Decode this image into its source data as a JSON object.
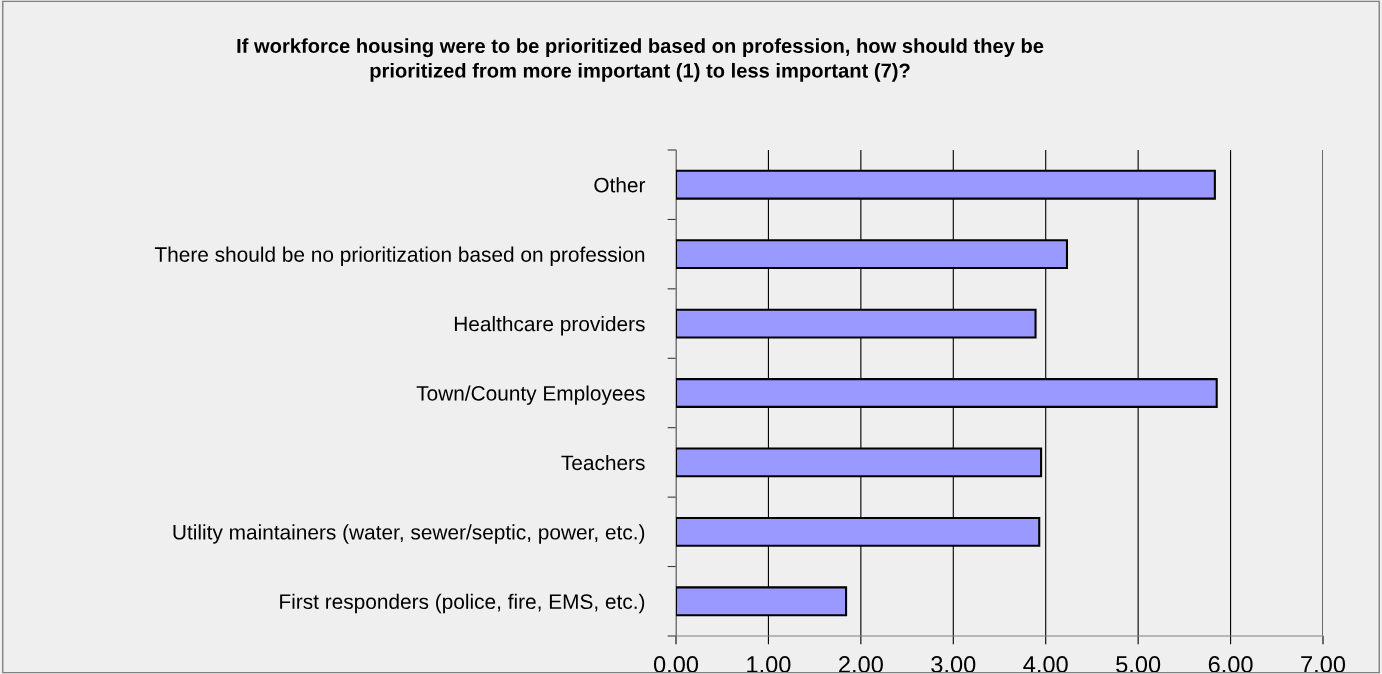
{
  "chart_data": {
    "type": "bar",
    "orientation": "horizontal",
    "title": "If workforce housing were to be prioritized based on profession, how should they be\nprioritized from more important (1) to less important (7)?",
    "categories": [
      "Other",
      "There should be no prioritization based on profession",
      "Healthcare providers",
      "Town/County Employees",
      "Teachers",
      "Utility maintainers (water, sewer/septic, power, etc.)",
      "First responders (police, fire, EMS, etc.)"
    ],
    "values": [
      5.83,
      4.23,
      3.89,
      5.85,
      3.95,
      3.93,
      1.84
    ],
    "color": "#9999ff",
    "xlim": [
      0,
      7
    ],
    "xticks": [
      {
        "value": 0,
        "label": "0.00"
      },
      {
        "value": 1,
        "label": "1.00"
      },
      {
        "value": 2,
        "label": "2.00"
      },
      {
        "value": 3,
        "label": "3.00"
      },
      {
        "value": 4,
        "label": "4.00"
      },
      {
        "value": 5,
        "label": "5.00"
      },
      {
        "value": 6,
        "label": "6.00"
      },
      {
        "value": 7,
        "label": "7.00"
      }
    ],
    "grid": "x",
    "legend": false
  }
}
